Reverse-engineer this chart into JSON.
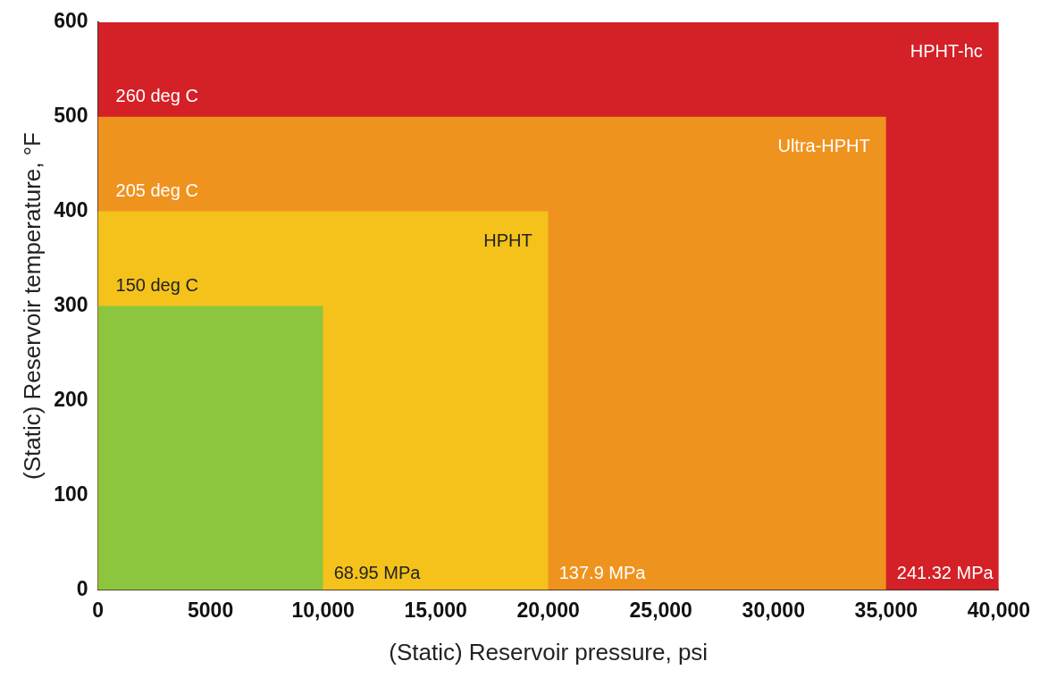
{
  "chart_data": {
    "type": "area",
    "xlabel": "(Static) Reservoir pressure, psi",
    "ylabel": "(Static) Reservoir temperature, °F",
    "xlim": [
      0,
      40000
    ],
    "ylim": [
      0,
      600
    ],
    "xticks": [
      0,
      5000,
      {
        "value": 10000,
        "label": "10,000"
      },
      {
        "value": 15000,
        "label": "15,000"
      },
      {
        "value": 20000,
        "label": "20,000"
      },
      {
        "value": 25000,
        "label": "25,000"
      },
      {
        "value": 30000,
        "label": "30,000"
      },
      {
        "value": 35000,
        "label": "35,000"
      },
      {
        "value": 40000,
        "label": "40,000"
      }
    ],
    "yticks": [
      0,
      100,
      200,
      300,
      400,
      500,
      600
    ],
    "series": [
      {
        "name": "HPHT-hc",
        "color": "#d42027",
        "x": [
          0,
          40000
        ],
        "values": [
          600,
          600
        ]
      },
      {
        "name": "Ultra-HPHT",
        "color": "#ef931f",
        "x": [
          0,
          35000
        ],
        "values": [
          500,
          500
        ]
      },
      {
        "name": "HPHT",
        "color": "#f4c21a",
        "x": [
          0,
          20000
        ],
        "values": [
          400,
          400
        ]
      },
      {
        "color": "#8cc63f",
        "x": [
          0,
          10000
        ],
        "values": [
          300,
          300
        ]
      }
    ],
    "annotations": [
      {
        "text": "260 deg C",
        "x": 0,
        "y": 500
      },
      {
        "text": "205 deg C",
        "x": 0,
        "y": 400
      },
      {
        "text": "150 deg C",
        "x": 0,
        "y": 300
      },
      {
        "text": "68.95 MPa",
        "x": 10000,
        "y": 0
      },
      {
        "text": "137.9 MPa",
        "x": 20000,
        "y": 0
      },
      {
        "text": "241.32 MPa",
        "x": 35000,
        "y": 0
      }
    ],
    "grid": false,
    "legend": false
  }
}
